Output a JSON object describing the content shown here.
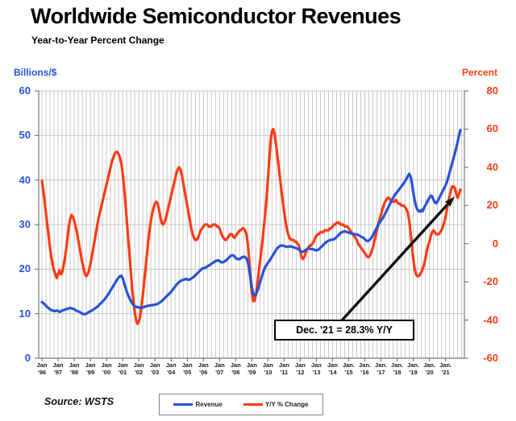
{
  "title": "Worldwide Semiconductor Revenues",
  "subtitle": "Year-to-Year Percent Change",
  "source": "Source: WSTS",
  "colors": {
    "blue": "#2853d8",
    "red": "#fa3c15",
    "grid": "#c8c8c8",
    "axis": "#777777",
    "arrow": "#111111",
    "tick_text": "#1a1a1a"
  },
  "chart_data": {
    "type": "line",
    "frequency": "monthly",
    "x_range": [
      "Jan 1996",
      "Dec 2021"
    ],
    "grid": "vertical quarterly lines + horizontal major lines",
    "legend_position": "bottom-center",
    "left_axis": {
      "label": "Billions/$",
      "min": 0,
      "max": 60,
      "step": 10,
      "ticks": [
        "60",
        "50",
        "40",
        "30",
        "20",
        "10",
        "0"
      ]
    },
    "right_axis": {
      "label": "Percent",
      "min": -60,
      "max": 80,
      "step": 20,
      "ticks": [
        "80",
        "60",
        "40",
        "20",
        "0",
        "-20",
        "-40",
        "-60"
      ]
    },
    "x_axis": {
      "labels": [
        {
          "m": "Jan",
          "y": "'96"
        },
        {
          "m": "Jan",
          "y": "'97"
        },
        {
          "m": "Jan",
          "y": "'98"
        },
        {
          "m": "Jan",
          "y": "'99"
        },
        {
          "m": "Jan",
          "y": "'00"
        },
        {
          "m": "Jan",
          "y": "'01"
        },
        {
          "m": "Jan",
          "y": "'02"
        },
        {
          "m": "Jan",
          "y": "'03"
        },
        {
          "m": "Jan",
          "y": "'04"
        },
        {
          "m": "Jan",
          "y": "'05"
        },
        {
          "m": "Jan",
          "y": "'06"
        },
        {
          "m": "Jan",
          "y": "'07"
        },
        {
          "m": "Jan",
          "y": "'08"
        },
        {
          "m": "Jan",
          "y": "'09"
        },
        {
          "m": "Jan",
          "y": "'10"
        },
        {
          "m": "Jan",
          "y": "'11"
        },
        {
          "m": "Jan",
          "y": "'12"
        },
        {
          "m": "Jan",
          "y": "'13"
        },
        {
          "m": "Jan",
          "y": "'14"
        },
        {
          "m": "Jan.",
          "y": "'15"
        },
        {
          "m": "Jan.",
          "y": "'16"
        },
        {
          "m": "Jan.",
          "y": "'17"
        },
        {
          "m": "Jan.",
          "y": "'18"
        },
        {
          "m": "Jan.",
          "y": "'19"
        },
        {
          "m": "Jan.",
          "y": "'20"
        },
        {
          "m": "Jan.",
          "y": "'21"
        }
      ]
    },
    "annotation": {
      "text": "Dec. '21 = 28.3% Y/Y",
      "points_to": "Dec 2021 value of Y/Y % Change line"
    },
    "series": [
      {
        "name": "Revenue",
        "axis": "left",
        "units": "US$ billions per month",
        "color": "#2853d8",
        "values": [
          12.6,
          12.4,
          12.1,
          11.8,
          11.5,
          11.2,
          11.0,
          10.8,
          10.7,
          10.6,
          10.6,
          10.7,
          10.6,
          10.4,
          10.5,
          10.7,
          10.8,
          10.9,
          11.0,
          11.1,
          11.2,
          11.3,
          11.2,
          11.1,
          11.0,
          10.8,
          10.6,
          10.5,
          10.4,
          10.2,
          10.0,
          9.9,
          9.9,
          10.0,
          10.2,
          10.4,
          10.5,
          10.7,
          10.9,
          11.1,
          11.3,
          11.5,
          11.8,
          12.1,
          12.4,
          12.7,
          13.0,
          13.4,
          13.8,
          14.2,
          14.7,
          15.2,
          15.7,
          16.2,
          16.7,
          17.2,
          17.7,
          18.1,
          18.4,
          18.5,
          18.0,
          17.0,
          16.0,
          15.0,
          14.2,
          13.5,
          12.9,
          12.4,
          12.0,
          11.7,
          11.5,
          11.5,
          11.4,
          11.3,
          11.3,
          11.4,
          11.5,
          11.6,
          11.7,
          11.8,
          11.8,
          11.9,
          11.9,
          12.0,
          12.0,
          12.1,
          12.2,
          12.4,
          12.6,
          12.8,
          13.1,
          13.4,
          13.7,
          14.0,
          14.3,
          14.6,
          14.9,
          15.3,
          15.7,
          16.1,
          16.5,
          16.8,
          17.1,
          17.3,
          17.5,
          17.6,
          17.7,
          17.8,
          17.7,
          17.6,
          17.7,
          17.9,
          18.1,
          18.3,
          18.6,
          18.9,
          19.2,
          19.5,
          19.8,
          20.1,
          20.2,
          20.3,
          20.4,
          20.6,
          20.8,
          21.0,
          21.2,
          21.4,
          21.6,
          21.8,
          21.9,
          22.0,
          21.8,
          21.6,
          21.5,
          21.6,
          21.8,
          22.0,
          22.3,
          22.6,
          22.9,
          23.1,
          23.1,
          22.9,
          22.5,
          22.3,
          22.2,
          22.3,
          22.5,
          22.7,
          22.8,
          22.7,
          22.4,
          21.6,
          20.0,
          18.0,
          16.0,
          14.6,
          14.0,
          14.3,
          15.0,
          15.9,
          16.9,
          17.9,
          18.9,
          19.8,
          20.5,
          21.0,
          21.4,
          21.8,
          22.3,
          22.8,
          23.3,
          23.8,
          24.3,
          24.7,
          25.0,
          25.2,
          25.3,
          25.3,
          25.2,
          25.1,
          25.0,
          25.0,
          25.1,
          25.1,
          25.0,
          24.9,
          24.8,
          24.7,
          24.6,
          24.4,
          24.1,
          23.9,
          23.9,
          24.1,
          24.3,
          24.5,
          24.6,
          24.6,
          24.5,
          24.5,
          24.4,
          24.3,
          24.2,
          24.3,
          24.5,
          24.8,
          25.1,
          25.4,
          25.7,
          26.0,
          26.2,
          26.4,
          26.5,
          26.6,
          26.6,
          26.7,
          26.9,
          27.2,
          27.5,
          27.8,
          28.1,
          28.3,
          28.4,
          28.5,
          28.4,
          28.3,
          28.2,
          28.1,
          28.0,
          27.9,
          27.9,
          27.8,
          27.8,
          27.7,
          27.5,
          27.3,
          27.2,
          27.0,
          26.7,
          26.4,
          26.3,
          26.4,
          26.7,
          27.1,
          27.6,
          28.2,
          28.8,
          29.4,
          30.0,
          30.5,
          30.9,
          31.3,
          31.8,
          32.4,
          33.0,
          33.6,
          34.2,
          34.8,
          35.4,
          36.0,
          36.5,
          37.0,
          37.3,
          37.7,
          38.1,
          38.5,
          38.9,
          39.3,
          39.8,
          40.3,
          40.9,
          41.4,
          40.8,
          39.3,
          37.3,
          35.5,
          34.2,
          33.4,
          33.0,
          32.9,
          33.3,
          33.0,
          33.8,
          34.3,
          34.9,
          35.5,
          36.0,
          36.5,
          36.3,
          35.6,
          35.0,
          34.8,
          35.2,
          35.8,
          36.4,
          37.0,
          37.6,
          38.2,
          38.8,
          39.6,
          40.6,
          41.7,
          42.8,
          43.9,
          45.0,
          46.1,
          47.3,
          48.6,
          50.0,
          51.2
        ]
      },
      {
        "name": "Y/Y % Change",
        "axis": "right",
        "units": "percent",
        "color": "#fa3c15",
        "values": [
          33,
          28,
          22,
          16,
          10,
          4,
          -2,
          -7,
          -11,
          -14,
          -16,
          -18,
          -16,
          -14,
          -16,
          -15,
          -12,
          -8,
          -3,
          3,
          9,
          13,
          15,
          14,
          12,
          9,
          6,
          2,
          -2,
          -6,
          -10,
          -13,
          -16,
          -17,
          -16,
          -14,
          -11,
          -7,
          -3,
          1,
          5,
          9,
          13,
          16,
          19,
          22,
          25,
          28,
          31,
          34,
          37,
          40,
          43,
          45,
          47,
          48,
          48,
          47,
          45,
          42,
          37,
          30,
          22,
          13,
          4,
          -5,
          -14,
          -23,
          -30,
          -36,
          -40,
          -42,
          -41,
          -38,
          -33,
          -27,
          -20,
          -13,
          -6,
          1,
          7,
          12,
          16,
          19,
          21,
          22,
          21,
          18,
          14,
          11,
          10,
          11,
          13,
          16,
          19,
          22,
          25,
          28,
          31,
          34,
          37,
          39,
          40,
          39,
          36,
          32,
          28,
          24,
          20,
          16,
          12,
          8,
          5,
          3,
          2,
          2,
          3,
          5,
          7,
          8,
          9,
          10,
          10,
          10,
          9,
          9,
          9,
          10,
          10,
          10,
          9,
          9,
          8,
          6,
          4,
          3,
          2,
          2,
          3,
          4,
          5,
          5,
          4,
          3,
          4,
          5,
          6,
          7,
          7,
          8,
          8,
          7,
          5,
          0,
          -8,
          -18,
          -26,
          -30,
          -30,
          -27,
          -22,
          -16,
          -10,
          -4,
          2,
          9,
          16,
          24,
          34,
          44,
          54,
          59,
          60,
          57,
          52,
          46,
          40,
          34,
          28,
          22,
          17,
          12,
          8,
          5,
          3,
          2,
          2,
          2,
          1,
          1,
          0,
          -1,
          -4,
          -7,
          -8,
          -7,
          -5,
          -3,
          -2,
          -1,
          -1,
          0,
          1,
          3,
          4,
          5,
          5,
          6,
          6,
          6,
          7,
          7,
          7,
          7,
          8,
          8,
          9,
          10,
          10,
          11,
          11,
          11,
          10,
          10,
          10,
          9,
          9,
          9,
          8,
          7,
          6,
          5,
          4,
          3,
          2,
          0,
          -1,
          -2,
          -3,
          -4,
          -5,
          -6,
          -7,
          -7,
          -6,
          -4,
          -2,
          1,
          4,
          7,
          10,
          13,
          15,
          18,
          20,
          22,
          23,
          24,
          24,
          23,
          22,
          22,
          22,
          23,
          22,
          21,
          21,
          20,
          20,
          20,
          19,
          18,
          16,
          12,
          6,
          -1,
          -8,
          -13,
          -16,
          -17,
          -17,
          -16,
          -15,
          -13,
          -11,
          -8,
          -4,
          -1,
          1,
          4,
          6,
          7,
          6,
          5,
          5,
          5,
          6,
          7,
          9,
          11,
          14,
          18,
          22,
          25,
          28,
          30,
          30,
          29,
          26,
          24,
          26,
          28.3
        ]
      }
    ]
  }
}
